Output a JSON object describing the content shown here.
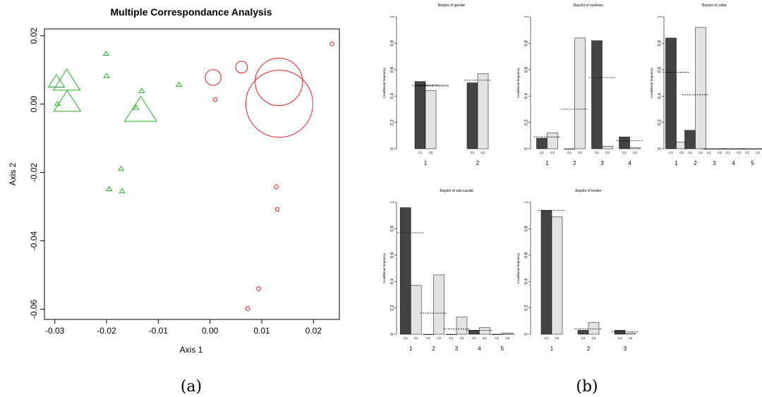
{
  "captions": {
    "a": "(a)",
    "b": "(b)"
  },
  "chart_data": [
    {
      "type": "scatter",
      "title": "Multiple Correspondance Analysis",
      "xlabel": "Axis 1",
      "ylabel": "Axis 2",
      "xlim": [
        -0.032,
        0.025
      ],
      "ylim": [
        -0.063,
        0.022
      ],
      "xticks": [
        "-0.03",
        "-0.02",
        "-0.01",
        "0.00",
        "0.01",
        "0.02"
      ],
      "xtick_values": [
        -0.03,
        -0.02,
        -0.01,
        0.0,
        0.01,
        0.02
      ],
      "yticks": [
        "0.02",
        "0.00",
        "-0.02",
        "-0.04",
        "-0.06"
      ],
      "ytick_values": [
        0.02,
        0.0,
        -0.02,
        -0.04,
        -0.06
      ],
      "series": [
        {
          "marker": "triangle",
          "color": "#22b022",
          "points": [
            {
              "x": -0.0297,
              "y": 0.0066,
              "size": 3
            },
            {
              "x": -0.0277,
              "y": 0.0068,
              "size": 5
            },
            {
              "x": -0.0295,
              "y": 0.0001,
              "size": 1
            },
            {
              "x": -0.0276,
              "y": 0.0006,
              "size": 5
            },
            {
              "x": -0.0201,
              "y": 0.0148,
              "size": 1
            },
            {
              "x": -0.02,
              "y": 0.0083,
              "size": 1
            },
            {
              "x": -0.0132,
              "y": 0.0039,
              "size": 1
            },
            {
              "x": -0.0143,
              "y": -0.001,
              "size": 1
            },
            {
              "x": -0.0134,
              "y": -0.0018,
              "size": 6
            },
            {
              "x": -0.006,
              "y": 0.0057,
              "size": 1
            },
            {
              "x": -0.0172,
              "y": -0.0189,
              "size": 1
            },
            {
              "x": -0.0195,
              "y": -0.0248,
              "size": 1
            },
            {
              "x": -0.017,
              "y": -0.0254,
              "size": 1
            }
          ]
        },
        {
          "marker": "circle",
          "color": "#e82020",
          "points": [
            {
              "x": 0.0006,
              "y": 0.0078,
              "size": 4
            },
            {
              "x": 0.0061,
              "y": 0.0108,
              "size": 3
            },
            {
              "x": 0.0133,
              "y": 0.0065,
              "size": 12
            },
            {
              "x": 0.0134,
              "y": 0.0001,
              "size": 17
            },
            {
              "x": 0.001,
              "y": 0.0013,
              "size": 1
            },
            {
              "x": 0.0236,
              "y": 0.0176,
              "size": 1
            },
            {
              "x": 0.0128,
              "y": -0.0242,
              "size": 1
            },
            {
              "x": 0.013,
              "y": -0.0308,
              "size": 1
            },
            {
              "x": 0.0094,
              "y": -0.054,
              "size": 1
            },
            {
              "x": 0.0073,
              "y": -0.0598,
              "size": 1
            }
          ]
        }
      ]
    },
    {
      "type": "bar",
      "panels": [
        {
          "title": "Barplot of gender",
          "categories": [
            "1",
            "2"
          ],
          "c1": [
            0.51,
            0.5
          ],
          "c2": [
            0.44,
            0.57
          ],
          "overall": [
            0.48,
            0.52
          ],
          "annotation": "Unconditional frequency"
        },
        {
          "title": "Barplot of eyebrow",
          "categories": [
            "1",
            "2",
            "3",
            "4"
          ],
          "c1": [
            0.08,
            0.0,
            0.82,
            0.09
          ],
          "c2": [
            0.12,
            0.84,
            0.02,
            0.01
          ],
          "overall": [
            0.09,
            0.3,
            0.54,
            0.06
          ]
        },
        {
          "title": "Barplot of collar",
          "categories": [
            "1",
            "2",
            "3",
            "4",
            "5"
          ],
          "c1": [
            0.84,
            0.14,
            0.0,
            0.0,
            0.0
          ],
          "c2": [
            0.05,
            0.92,
            0.0,
            0.0,
            0.0
          ],
          "overall": [
            0.58,
            0.41,
            0.0,
            0.0,
            0.0
          ]
        },
        {
          "title": "Barplot of sub-caudal",
          "categories": [
            "1",
            "2",
            "3",
            "4",
            "5"
          ],
          "c1": [
            0.96,
            0.0,
            0.0,
            0.03,
            0.0
          ],
          "c2": [
            0.37,
            0.45,
            0.13,
            0.05,
            0.01
          ],
          "overall": [
            0.77,
            0.16,
            0.04,
            0.03,
            0.0
          ]
        },
        {
          "title": "Barplot of border",
          "categories": [
            "1",
            "2",
            "3"
          ],
          "c1": [
            0.94,
            0.03,
            0.03
          ],
          "c2": [
            0.89,
            0.09,
            0.01
          ],
          "overall": [
            0.94,
            0.04,
            0.02
          ]
        }
      ],
      "class_labels": [
        "C1",
        "C2"
      ],
      "ylabel": "Conditional frequency",
      "yticks": [
        "0",
        "0.2",
        "0.4",
        "0.6",
        "0.8",
        "1"
      ],
      "ylim": [
        0,
        1
      ],
      "colors": {
        "c1": "#444444",
        "c2": "#e3e3e3"
      }
    }
  ]
}
